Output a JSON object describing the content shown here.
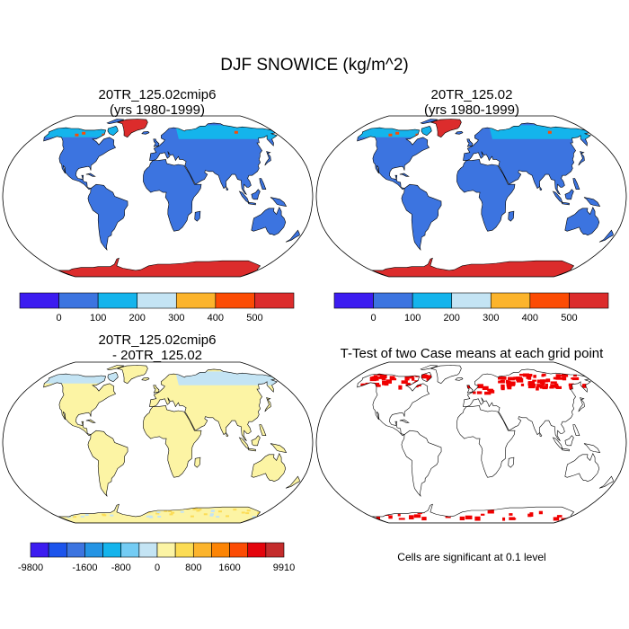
{
  "figure": {
    "title": "DJF SNOWICE (kg/m^2)"
  },
  "chart_data": [
    {
      "type": "heatmap",
      "title": "20TR_125.02cmip6",
      "subtitle": "(yrs 1980-1999)",
      "projection": "robinson",
      "colorbar": {
        "colors": [
          "#3c1cf0",
          "#3c74e0",
          "#14b4ec",
          "#c4e4f4",
          "#fcb42c",
          "#fc4c04",
          "#dc2c2c"
        ],
        "tick_labels": [
          "0",
          "100",
          "200",
          "300",
          "400",
          "500"
        ]
      },
      "regions": [
        {
          "name": "most land areas",
          "range": "0-100",
          "color": "#3c74e0"
        },
        {
          "name": "Greenland",
          "range": ">500",
          "color": "#dc2c2c"
        },
        {
          "name": "Antarctica",
          "range": ">500",
          "color": "#dc2c2c"
        },
        {
          "name": "northern Siberia / Canada",
          "range": "100-200",
          "color": "#14b4ec"
        }
      ]
    },
    {
      "type": "heatmap",
      "title": "20TR_125.02",
      "subtitle": "(yrs 1980-1999)",
      "projection": "robinson",
      "colorbar": {
        "colors": [
          "#3c1cf0",
          "#3c74e0",
          "#14b4ec",
          "#c4e4f4",
          "#fcb42c",
          "#fc4c04",
          "#dc2c2c"
        ],
        "tick_labels": [
          "0",
          "100",
          "200",
          "300",
          "400",
          "500"
        ]
      },
      "regions": [
        {
          "name": "most land areas",
          "range": "0-100",
          "color": "#3c74e0"
        },
        {
          "name": "Greenland",
          "range": ">500",
          "color": "#dc2c2c"
        },
        {
          "name": "Antarctica",
          "range": ">500",
          "color": "#dc2c2c"
        },
        {
          "name": "northern Siberia / Canada",
          "range": "100-200",
          "color": "#14b4ec"
        }
      ]
    },
    {
      "type": "heatmap",
      "title": "20TR_125.02cmip6",
      "subtitle": "- 20TR_125.02",
      "projection": "robinson",
      "colorbar": {
        "colors": [
          "#3c1cf0",
          "#1c54ec",
          "#3c74e0",
          "#2494e4",
          "#14b4ec",
          "#74ccf4",
          "#c4e4f4",
          "#fcf4a4",
          "#fcdc54",
          "#fcb42c",
          "#fc8404",
          "#fc4c04",
          "#e4040c",
          "#c42c2c"
        ],
        "tick_labels": [
          "-9800",
          "-1600",
          "-800",
          "0",
          "800",
          "1600",
          "9910"
        ]
      },
      "regions": [
        {
          "name": "most land areas",
          "range": "0 to 800",
          "color": "#fcf4a4"
        },
        {
          "name": "northern high latitudes",
          "range": "-800 to 0",
          "color": "#c4e4f4"
        }
      ]
    },
    {
      "type": "heatmap",
      "title": "T-Test of two Case means at each grid point",
      "projection": "robinson",
      "footer": "Cells are significant at 0.1 level",
      "significant_color": "#f00000",
      "regions": [
        {
          "name": "northern Siberia",
          "significant": true
        },
        {
          "name": "northern Canada / Alaska",
          "significant": true
        },
        {
          "name": "Antarctic coast",
          "significant": true
        }
      ]
    }
  ]
}
